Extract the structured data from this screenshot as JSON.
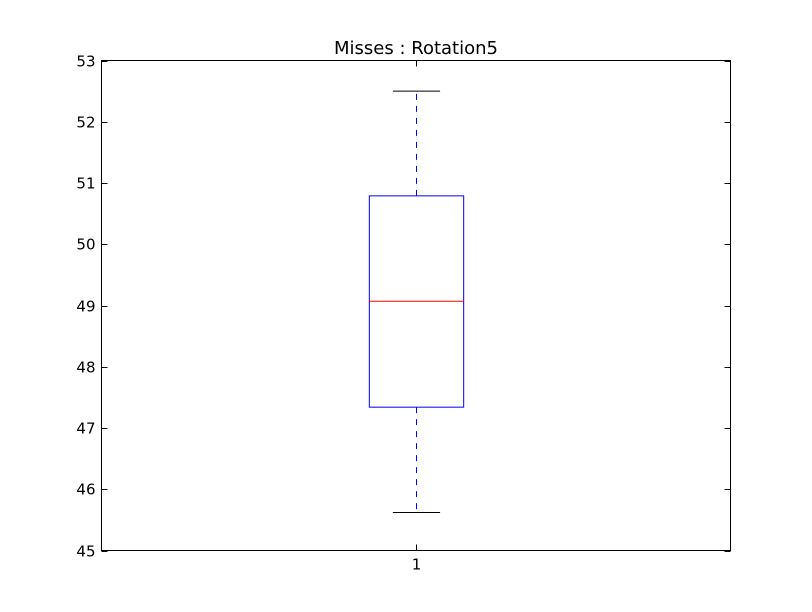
{
  "chart_data": {
    "type": "boxplot",
    "title": "Misses : Rotation5",
    "xlabel": "",
    "ylabel": "",
    "categories": [
      "1"
    ],
    "ylim": [
      45,
      53
    ],
    "yticks": [
      45,
      46,
      47,
      48,
      49,
      50,
      51,
      52,
      53
    ],
    "ytick_labels": [
      "45",
      "46",
      "47",
      "48",
      "49",
      "50",
      "51",
      "52",
      "53"
    ],
    "grid": false,
    "boxes": [
      {
        "category": "1",
        "whisker_low": 45.62,
        "q1": 47.34,
        "median": 49.07,
        "q3": 50.79,
        "whisker_high": 52.5
      }
    ],
    "colors": {
      "box": "#0000ff",
      "whisker": "#0000ff",
      "median": "#ff0000",
      "cap": "#000000",
      "axes": "#000000"
    }
  }
}
